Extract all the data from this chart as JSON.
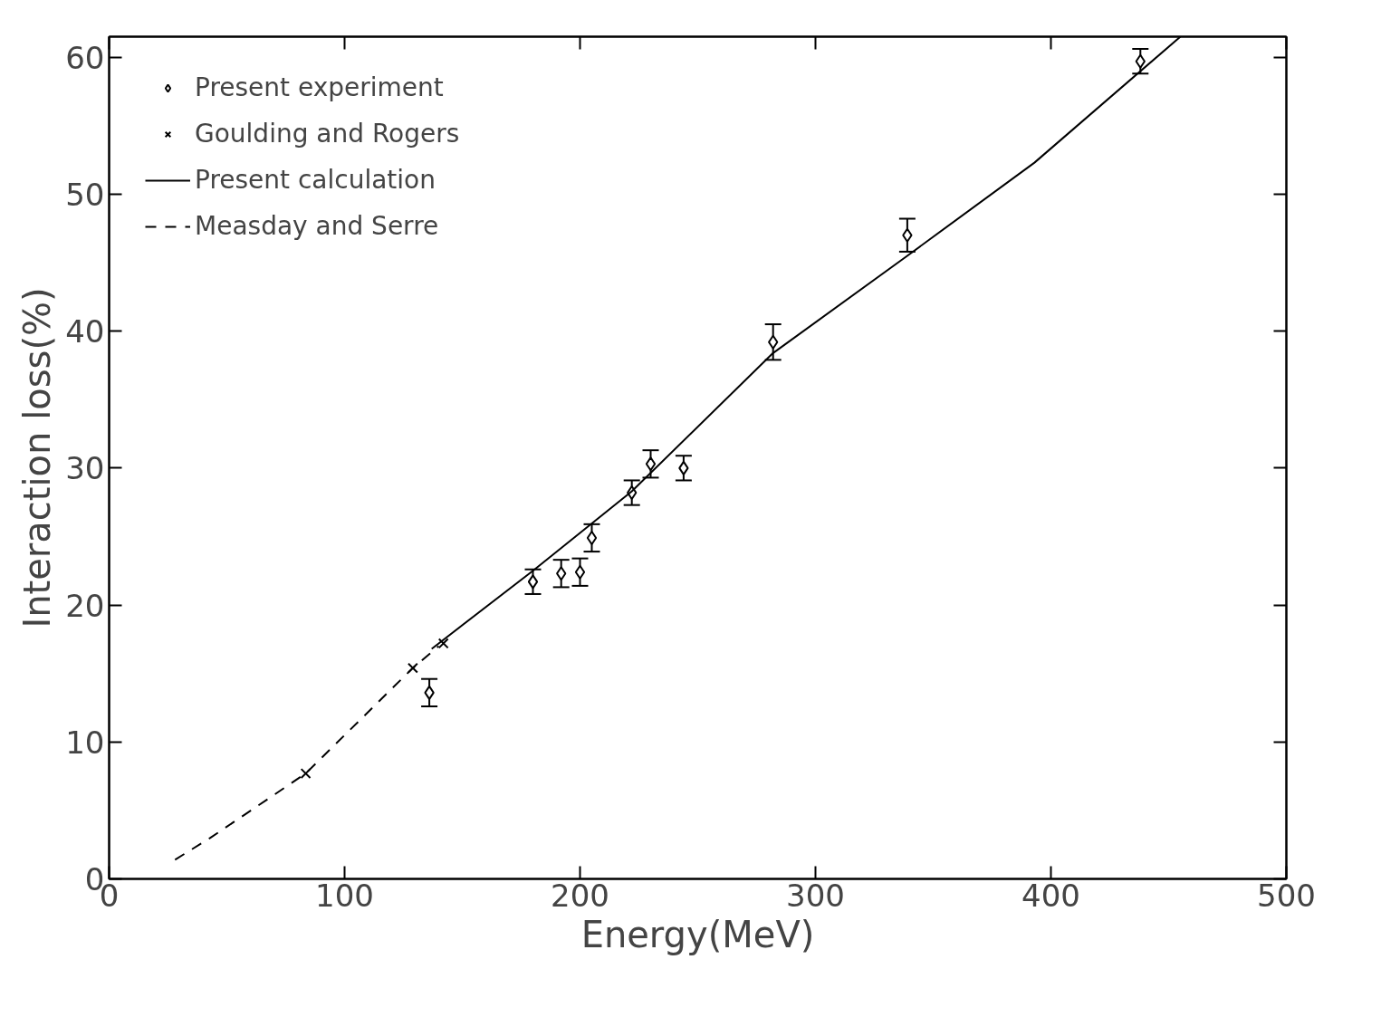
{
  "chart_data": {
    "type": "scatter",
    "xlabel": "Energy(MeV)",
    "ylabel": "Interaction loss(%)",
    "xlim": [
      0,
      500
    ],
    "ylim": [
      0,
      61.5
    ],
    "xticks": [
      0,
      100,
      200,
      300,
      400,
      500
    ],
    "yticks": [
      0,
      10,
      20,
      30,
      40,
      50,
      60
    ],
    "grid": false,
    "legend": "top left",
    "series": [
      {
        "name": "Present experiment",
        "marker": "diamond",
        "color": "#000000",
        "x": [
          136,
          180,
          192,
          200,
          205,
          222,
          230,
          244,
          282,
          339,
          438
        ],
        "values": [
          13.6,
          21.7,
          22.3,
          22.4,
          24.9,
          28.2,
          30.3,
          30.0,
          39.2,
          47.0,
          59.7
        ],
        "errors": [
          1.0,
          0.9,
          1.0,
          1.0,
          1.0,
          0.9,
          1.0,
          0.9,
          1.3,
          1.2,
          0.9
        ]
      },
      {
        "name": "Goulding and Rogers",
        "marker": "cross",
        "color": "#000000",
        "x": [
          83.5,
          129,
          142
        ],
        "values": [
          7.7,
          15.4,
          17.2
        ]
      },
      {
        "name": "Present calculation",
        "type": "line",
        "marker": "none",
        "line_style": "solid",
        "color": "#000000",
        "x": [
          137,
          180,
          222,
          282,
          339,
          393,
          455
        ],
        "values": [
          16.8,
          22.5,
          28.3,
          38.4,
          45.5,
          52.3,
          61.5
        ]
      },
      {
        "name": "Measday and Serre",
        "type": "line",
        "marker": "none",
        "line_style": "dashed",
        "color": "#000000",
        "x": [
          28,
          43,
          83.5,
          129,
          140
        ],
        "values": [
          1.4,
          3.0,
          7.7,
          15.4,
          17.0
        ]
      }
    ]
  }
}
